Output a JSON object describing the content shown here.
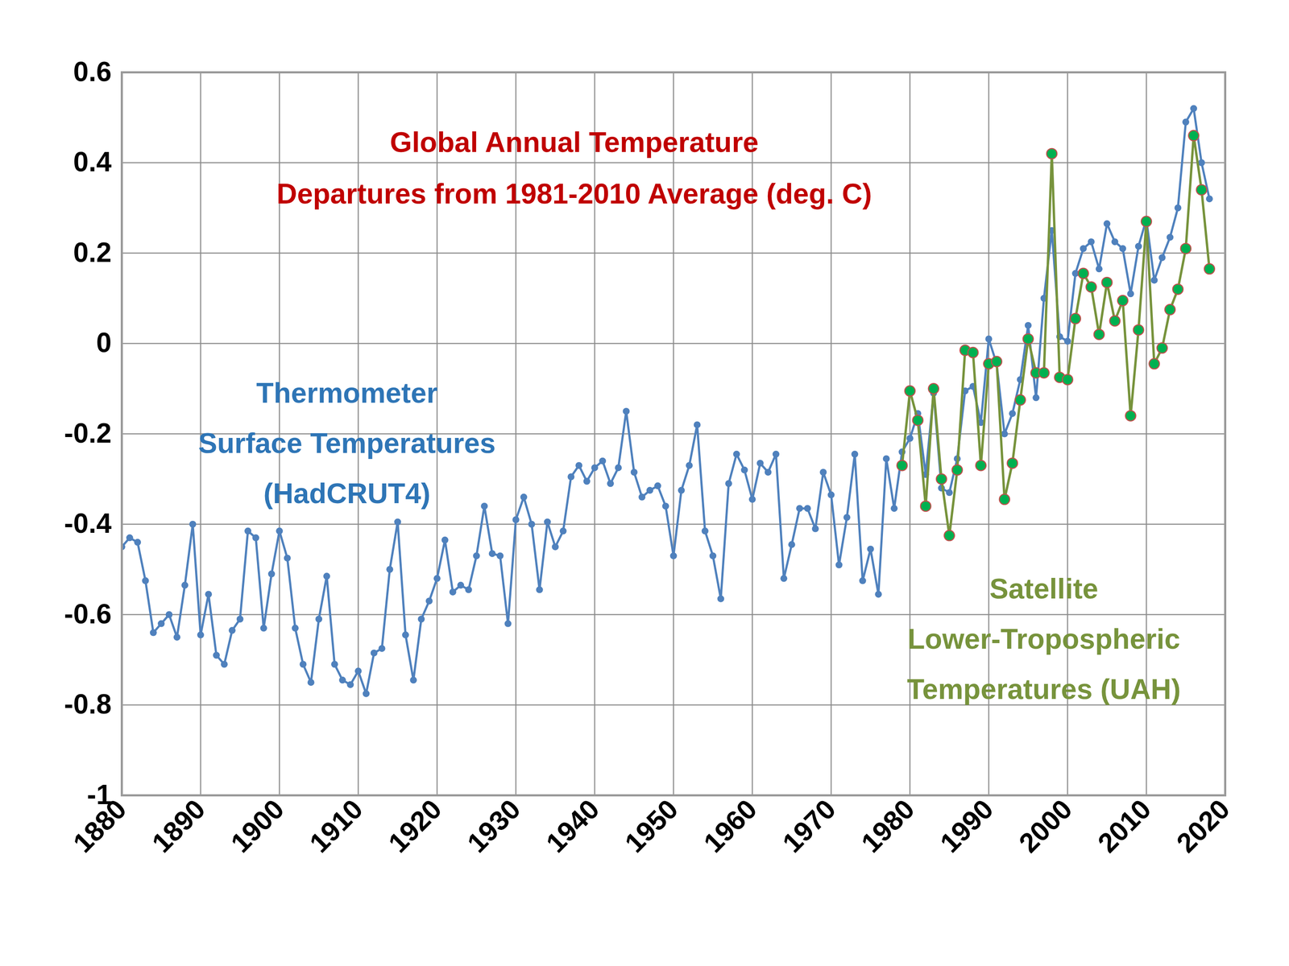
{
  "chart_data": {
    "type": "line",
    "title": "Global Annual Temperature\nDepartures from 1981-2010 Average (deg. C)",
    "series": [
      {
        "name": "Thermometer\nSurface Temperatures\n(HadCRUT4)",
        "color": "#4f81bd",
        "marker": "circle",
        "x": [
          1880,
          1881,
          1882,
          1883,
          1884,
          1885,
          1886,
          1887,
          1888,
          1889,
          1890,
          1891,
          1892,
          1893,
          1894,
          1895,
          1896,
          1897,
          1898,
          1899,
          1900,
          1901,
          1902,
          1903,
          1904,
          1905,
          1906,
          1907,
          1908,
          1909,
          1910,
          1911,
          1912,
          1913,
          1914,
          1915,
          1916,
          1917,
          1918,
          1919,
          1920,
          1921,
          1922,
          1923,
          1924,
          1925,
          1926,
          1927,
          1928,
          1929,
          1930,
          1931,
          1932,
          1933,
          1934,
          1935,
          1936,
          1937,
          1938,
          1939,
          1940,
          1941,
          1942,
          1943,
          1944,
          1945,
          1946,
          1947,
          1948,
          1949,
          1950,
          1951,
          1952,
          1953,
          1954,
          1955,
          1956,
          1957,
          1958,
          1959,
          1960,
          1961,
          1962,
          1963,
          1964,
          1965,
          1966,
          1967,
          1968,
          1969,
          1970,
          1971,
          1972,
          1973,
          1974,
          1975,
          1976,
          1977,
          1978,
          1979,
          1980,
          1981,
          1982,
          1983,
          1984,
          1985,
          1986,
          1987,
          1988,
          1989,
          1990,
          1991,
          1992,
          1993,
          1994,
          1995,
          1996,
          1997,
          1998,
          1999,
          2000,
          2001,
          2002,
          2003,
          2004,
          2005,
          2006,
          2007,
          2008,
          2009,
          2010,
          2011,
          2012,
          2013,
          2014,
          2015,
          2016,
          2017,
          2018
        ],
        "values": [
          -0.45,
          -0.43,
          -0.44,
          -0.525,
          -0.64,
          -0.62,
          -0.6,
          -0.65,
          -0.535,
          -0.4,
          -0.645,
          -0.555,
          -0.69,
          -0.71,
          -0.635,
          -0.61,
          -0.415,
          -0.43,
          -0.63,
          -0.51,
          -0.415,
          -0.475,
          -0.63,
          -0.71,
          -0.75,
          -0.61,
          -0.515,
          -0.71,
          -0.745,
          -0.755,
          -0.725,
          -0.775,
          -0.685,
          -0.675,
          -0.5,
          -0.395,
          -0.645,
          -0.745,
          -0.61,
          -0.57,
          -0.52,
          -0.435,
          -0.55,
          -0.535,
          -0.545,
          -0.47,
          -0.36,
          -0.465,
          -0.47,
          -0.62,
          -0.39,
          -0.34,
          -0.4,
          -0.545,
          -0.395,
          -0.45,
          -0.415,
          -0.295,
          -0.27,
          -0.305,
          -0.275,
          -0.26,
          -0.31,
          -0.275,
          -0.15,
          -0.285,
          -0.34,
          -0.325,
          -0.315,
          -0.36,
          -0.47,
          -0.325,
          -0.27,
          -0.18,
          -0.415,
          -0.47,
          -0.565,
          -0.31,
          -0.245,
          -0.28,
          -0.345,
          -0.265,
          -0.285,
          -0.245,
          -0.52,
          -0.445,
          -0.365,
          -0.365,
          -0.41,
          -0.285,
          -0.335,
          -0.49,
          -0.385,
          -0.245,
          -0.525,
          -0.455,
          -0.555,
          -0.255,
          -0.365,
          -0.24,
          -0.21,
          -0.155,
          -0.29,
          -0.11,
          -0.32,
          -0.33,
          -0.255,
          -0.105,
          -0.095,
          -0.175,
          0.01,
          -0.045,
          -0.2,
          -0.155,
          -0.08,
          0.04,
          -0.12,
          0.1,
          0.25,
          0.015,
          0.005,
          0.155,
          0.21,
          0.225,
          0.165,
          0.265,
          0.225,
          0.21,
          0.11,
          0.215,
          0.275,
          0.14,
          0.19,
          0.235,
          0.3,
          0.49,
          0.52,
          0.4,
          0.32
        ]
      },
      {
        "name": "Satellite\nLower-Tropospheric\nTemperatures (UAH)",
        "color": "#77933c",
        "marker": "circle",
        "x": [
          1979,
          1980,
          1981,
          1982,
          1983,
          1984,
          1985,
          1986,
          1987,
          1988,
          1989,
          1990,
          1991,
          1992,
          1993,
          1994,
          1995,
          1996,
          1997,
          1998,
          1999,
          2000,
          2001,
          2002,
          2003,
          2004,
          2005,
          2006,
          2007,
          2008,
          2009,
          2010,
          2011,
          2012,
          2013,
          2014,
          2015,
          2016,
          2017,
          2018
        ],
        "values": [
          -0.27,
          -0.105,
          -0.17,
          -0.36,
          -0.1,
          -0.3,
          -0.425,
          -0.28,
          -0.015,
          -0.02,
          -0.27,
          -0.045,
          -0.04,
          -0.345,
          -0.265,
          -0.125,
          0.01,
          -0.065,
          -0.065,
          0.42,
          -0.075,
          -0.08,
          0.055,
          0.155,
          0.125,
          0.02,
          0.135,
          0.05,
          0.095,
          -0.16,
          0.03,
          0.27,
          -0.045,
          -0.01,
          0.075,
          0.12,
          0.21,
          0.46,
          0.34,
          0.165
        ]
      }
    ],
    "xlim": [
      1880,
      2020
    ],
    "xticks": [
      1880,
      1890,
      1900,
      1910,
      1920,
      1930,
      1940,
      1950,
      1960,
      1970,
      1980,
      1990,
      2000,
      2010,
      2020
    ],
    "ylim": [
      -1,
      0.6
    ],
    "yticks": [
      -1,
      -0.8,
      -0.6,
      -0.4,
      -0.2,
      0,
      0.2,
      0.4,
      0.6
    ],
    "grid": true
  }
}
